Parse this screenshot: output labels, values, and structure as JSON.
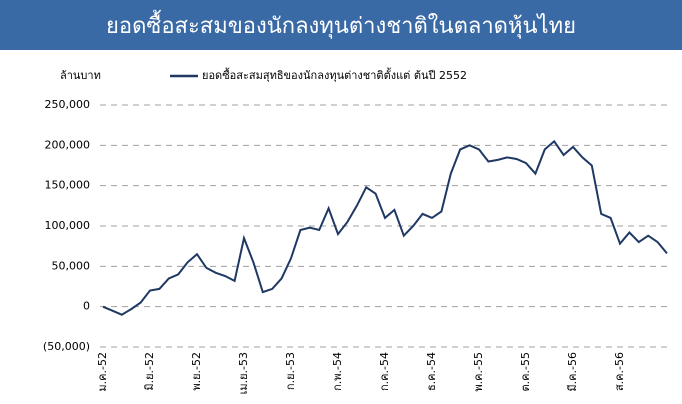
{
  "chart_data": {
    "type": "line",
    "title": "ยอดซื้อสะสมของนักลงทุนต่างชาติในตลาดหุ้นไทย",
    "ylabel": "ล้านบาท",
    "categories": [
      "ม.ค.-52",
      null,
      null,
      null,
      null,
      "มิ.ย.-52",
      null,
      null,
      null,
      null,
      "พ.ย.-52",
      null,
      null,
      null,
      null,
      "เม.ย.-53",
      null,
      null,
      null,
      null,
      "ก.ย.-53",
      null,
      null,
      null,
      null,
      "ก.พ.-54",
      null,
      null,
      null,
      null,
      "ก.ค.-54",
      null,
      null,
      null,
      null,
      "ธ.ค.-54",
      null,
      null,
      null,
      null,
      "พ.ค.-55",
      null,
      null,
      null,
      null,
      "ต.ค.-55",
      null,
      null,
      null,
      null,
      "มี.ค.-56",
      null,
      null,
      null,
      null,
      "ส.ค.-56",
      null,
      null,
      null,
      null,
      null
    ],
    "series": [
      {
        "name": "ยอดซื้อสะสมสุทธิของนักลงทุนต่างชาติตั้งแต่ ต้นปี 2552",
        "color": "#1f3864",
        "values": [
          0,
          -5000,
          -10000,
          -3000,
          5000,
          20000,
          22000,
          35000,
          40000,
          55000,
          65000,
          48000,
          42000,
          38000,
          32000,
          85000,
          55000,
          18000,
          22000,
          35000,
          60000,
          95000,
          98000,
          95000,
          122000,
          90000,
          105000,
          125000,
          148000,
          140000,
          110000,
          120000,
          88000,
          100000,
          115000,
          110000,
          118000,
          165000,
          195000,
          200000,
          195000,
          180000,
          182000,
          185000,
          183000,
          178000,
          165000,
          195000,
          205000,
          188000,
          198000,
          185000,
          175000,
          115000,
          110000,
          78000,
          92000,
          80000,
          88000,
          80000,
          66000
        ]
      }
    ],
    "ylim": [
      -50000,
      250000
    ],
    "yticks": [
      {
        "value": -50000,
        "label": "(50,000)"
      },
      0,
      {
        "value": 50000,
        "label": "50,000"
      },
      {
        "value": 100000,
        "label": "100,000"
      },
      {
        "value": 150000,
        "label": "150,000"
      },
      {
        "value": 200000,
        "label": "200,000"
      },
      {
        "value": 250000,
        "label": "250,000"
      }
    ],
    "grid": true
  }
}
